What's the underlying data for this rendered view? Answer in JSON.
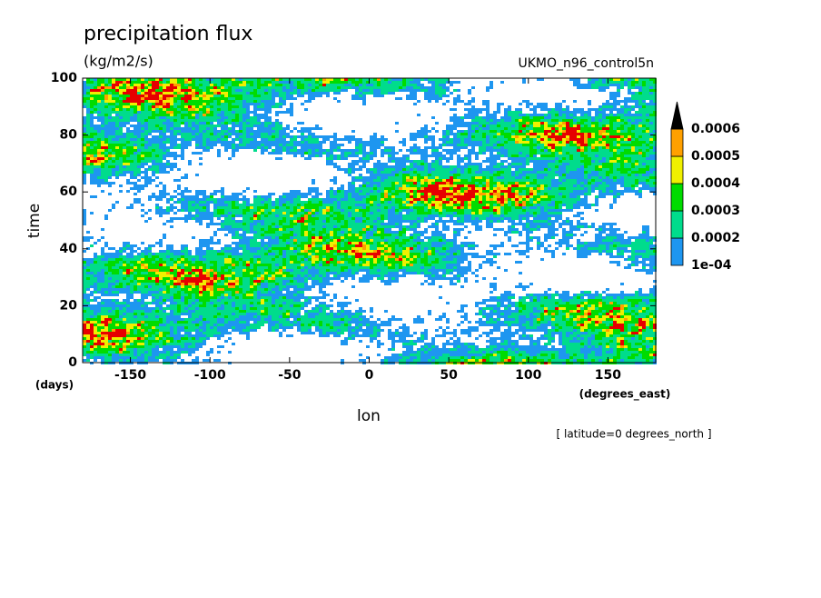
{
  "chart_data": {
    "type": "hovmoller",
    "title": "precipitation flux",
    "units": "(kg/m2/s)",
    "subtitle": "UKMO_n96_control5n",
    "x_label": "lon",
    "x_units": "(degrees_east)",
    "y_label": "time",
    "y_units": "(days)",
    "annotation": "[ latitude=0 degrees_north ]",
    "xlim": [
      -180,
      180
    ],
    "xticks": [
      -150,
      -100,
      -50,
      0,
      50,
      100,
      150
    ],
    "ylim": [
      0,
      100
    ],
    "yticks": [
      0,
      20,
      40,
      60,
      80,
      100
    ],
    "colorbar": {
      "levels": [
        {
          "value": 0.0001,
          "label": "1e-04"
        },
        0.0002,
        0.0003,
        0.0004,
        0.0005,
        0.0006
      ],
      "colors": [
        "#1e96f0",
        "#00dc8c",
        "#00dc00",
        "#f0f000",
        "#ffa000",
        "#e60000"
      ]
    }
  }
}
